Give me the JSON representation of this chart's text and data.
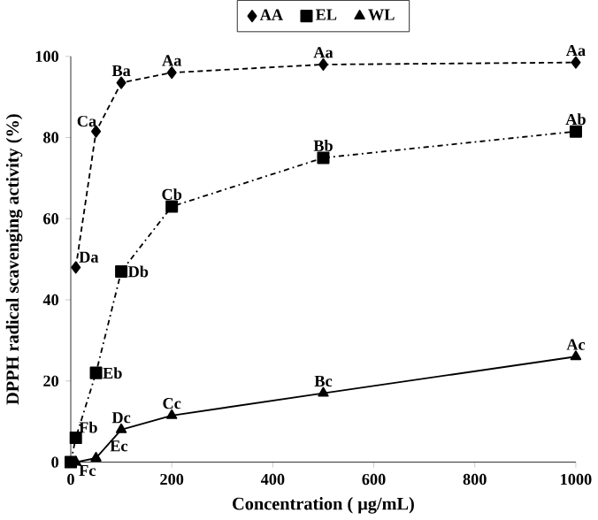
{
  "chart_data": {
    "type": "line",
    "xlabel": "Concentration ( μg/mL)",
    "ylabel": "DPPH radical scavenging activity (%)",
    "x": [
      0,
      10,
      50,
      100,
      200,
      500,
      1000
    ],
    "series": [
      {
        "name": "AA",
        "color": "#000000",
        "marker": "diamond",
        "line_style": "dotted",
        "values": [
          null,
          48,
          81.5,
          93.5,
          96,
          98,
          98.5
        ]
      },
      {
        "name": "EL",
        "color": "#000000",
        "marker": "square",
        "line_style": "dashed",
        "values": [
          0,
          6,
          22,
          47,
          63,
          75,
          81.5
        ]
      },
      {
        "name": "WL",
        "color": "#000000",
        "marker": "triangle",
        "line_style": "solid",
        "values": [
          null,
          0,
          1,
          8,
          11.5,
          17,
          26
        ]
      }
    ],
    "xlim": [
      0,
      1000
    ],
    "ylim": [
      0,
      100
    ],
    "xticks": [
      0,
      200,
      400,
      600,
      800,
      1000
    ],
    "yticks": [
      0,
      20,
      40,
      60,
      80,
      100
    ],
    "legend": "top",
    "grid": false,
    "annotations": [
      {
        "text": "Da",
        "x": 10,
        "y": 48
      },
      {
        "text": "Ca",
        "x": 50,
        "y": 81.5
      },
      {
        "text": "Ba",
        "x": 100,
        "y": 93.5
      },
      {
        "text": "Aa",
        "x": 200,
        "y": 96
      },
      {
        "text": "Aa",
        "x": 500,
        "y": 98
      },
      {
        "text": "Aa",
        "x": 1000,
        "y": 98.5
      },
      {
        "text": "Fb",
        "x": 10,
        "y": 6
      },
      {
        "text": "Eb",
        "x": 50,
        "y": 22
      },
      {
        "text": "Db",
        "x": 100,
        "y": 47
      },
      {
        "text": "Cb",
        "x": 200,
        "y": 63
      },
      {
        "text": "Bb",
        "x": 500,
        "y": 75
      },
      {
        "text": "Ab",
        "x": 1000,
        "y": 81.5
      },
      {
        "text": "Fc",
        "x": 10,
        "y": 0
      },
      {
        "text": "Ec",
        "x": 50,
        "y": 1
      },
      {
        "text": "Dc",
        "x": 100,
        "y": 8
      },
      {
        "text": "Cc",
        "x": 200,
        "y": 11.5
      },
      {
        "text": "Bc",
        "x": 500,
        "y": 17
      },
      {
        "text": "Ac",
        "x": 1000,
        "y": 26
      }
    ]
  }
}
